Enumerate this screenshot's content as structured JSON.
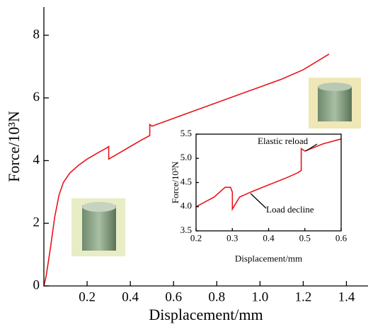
{
  "chart_data": [
    {
      "type": "line",
      "x_label": "Displacement/mm",
      "y_label": "Force/10³N",
      "color": "#e8141b",
      "xlim": [
        0,
        1.5
      ],
      "ylim": [
        0,
        8.9
      ],
      "xticks": [
        0.2,
        0.4,
        0.6,
        0.8,
        {
          "value": 1,
          "label": "1.0"
        },
        1.2,
        1.4
      ],
      "yticks": [
        0,
        2,
        4,
        6,
        8
      ],
      "x": [
        0,
        0.01,
        0.03,
        0.05,
        0.07,
        0.09,
        0.12,
        0.16,
        0.2,
        0.25,
        0.29,
        0.3,
        0.3,
        0.35,
        0.4,
        0.45,
        0.49,
        0.49,
        0.5,
        0.6,
        0.7,
        0.8,
        0.9,
        1.0,
        1.1,
        1.2,
        1.32
      ],
      "values": [
        0,
        0.3,
        1.2,
        2.2,
        2.9,
        3.3,
        3.6,
        3.85,
        4.05,
        4.25,
        4.4,
        4.45,
        4.05,
        4.25,
        4.45,
        4.65,
        4.8,
        5.15,
        5.1,
        5.35,
        5.6,
        5.85,
        6.1,
        6.35,
        6.6,
        6.9,
        7.4
      ]
    },
    {
      "type": "line",
      "x_label": "Displacement/mm",
      "y_label": "Force/10³N",
      "color": "#e8141b",
      "xlim": [
        0.2,
        0.6
      ],
      "ylim": [
        3.5,
        5.5
      ],
      "xticks": [
        0.2,
        0.3,
        0.4,
        0.5,
        0.6
      ],
      "yticks": [
        3.5,
        {
          "value": 4,
          "label": "4.0"
        },
        4.5,
        {
          "value": 5,
          "label": "5.0"
        },
        5.5
      ],
      "annotations": [
        "Elastic reload",
        "Load decline"
      ],
      "x": [
        0.2,
        0.25,
        0.28,
        0.295,
        0.3,
        0.3,
        0.32,
        0.35,
        0.4,
        0.45,
        0.48,
        0.49,
        0.49,
        0.5,
        0.55,
        0.6
      ],
      "values": [
        4.0,
        4.2,
        4.4,
        4.4,
        4.3,
        3.95,
        4.2,
        4.3,
        4.45,
        4.6,
        4.7,
        4.75,
        5.2,
        5.15,
        5.3,
        5.4
      ]
    }
  ]
}
